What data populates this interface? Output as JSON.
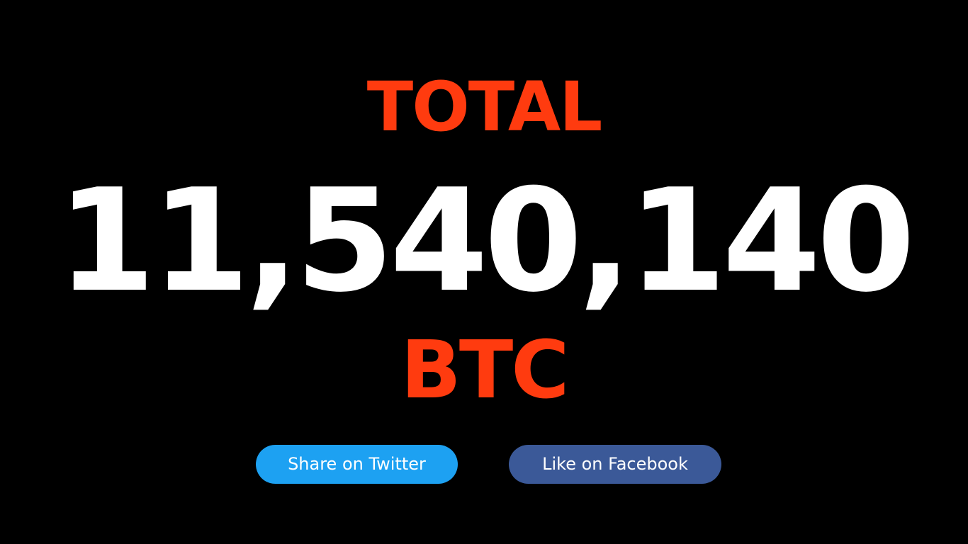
{
  "counter": {
    "label": "TOTAL",
    "value": "11,540,140",
    "unit": "BTC"
  },
  "share": {
    "twitter_label": "Share on Twitter",
    "facebook_label": "Like on Facebook"
  },
  "colors": {
    "accent": "#ff3b0f",
    "value_text": "#ffffff",
    "background": "#000000",
    "twitter": "#1da1f2",
    "facebook": "#3b5998"
  }
}
